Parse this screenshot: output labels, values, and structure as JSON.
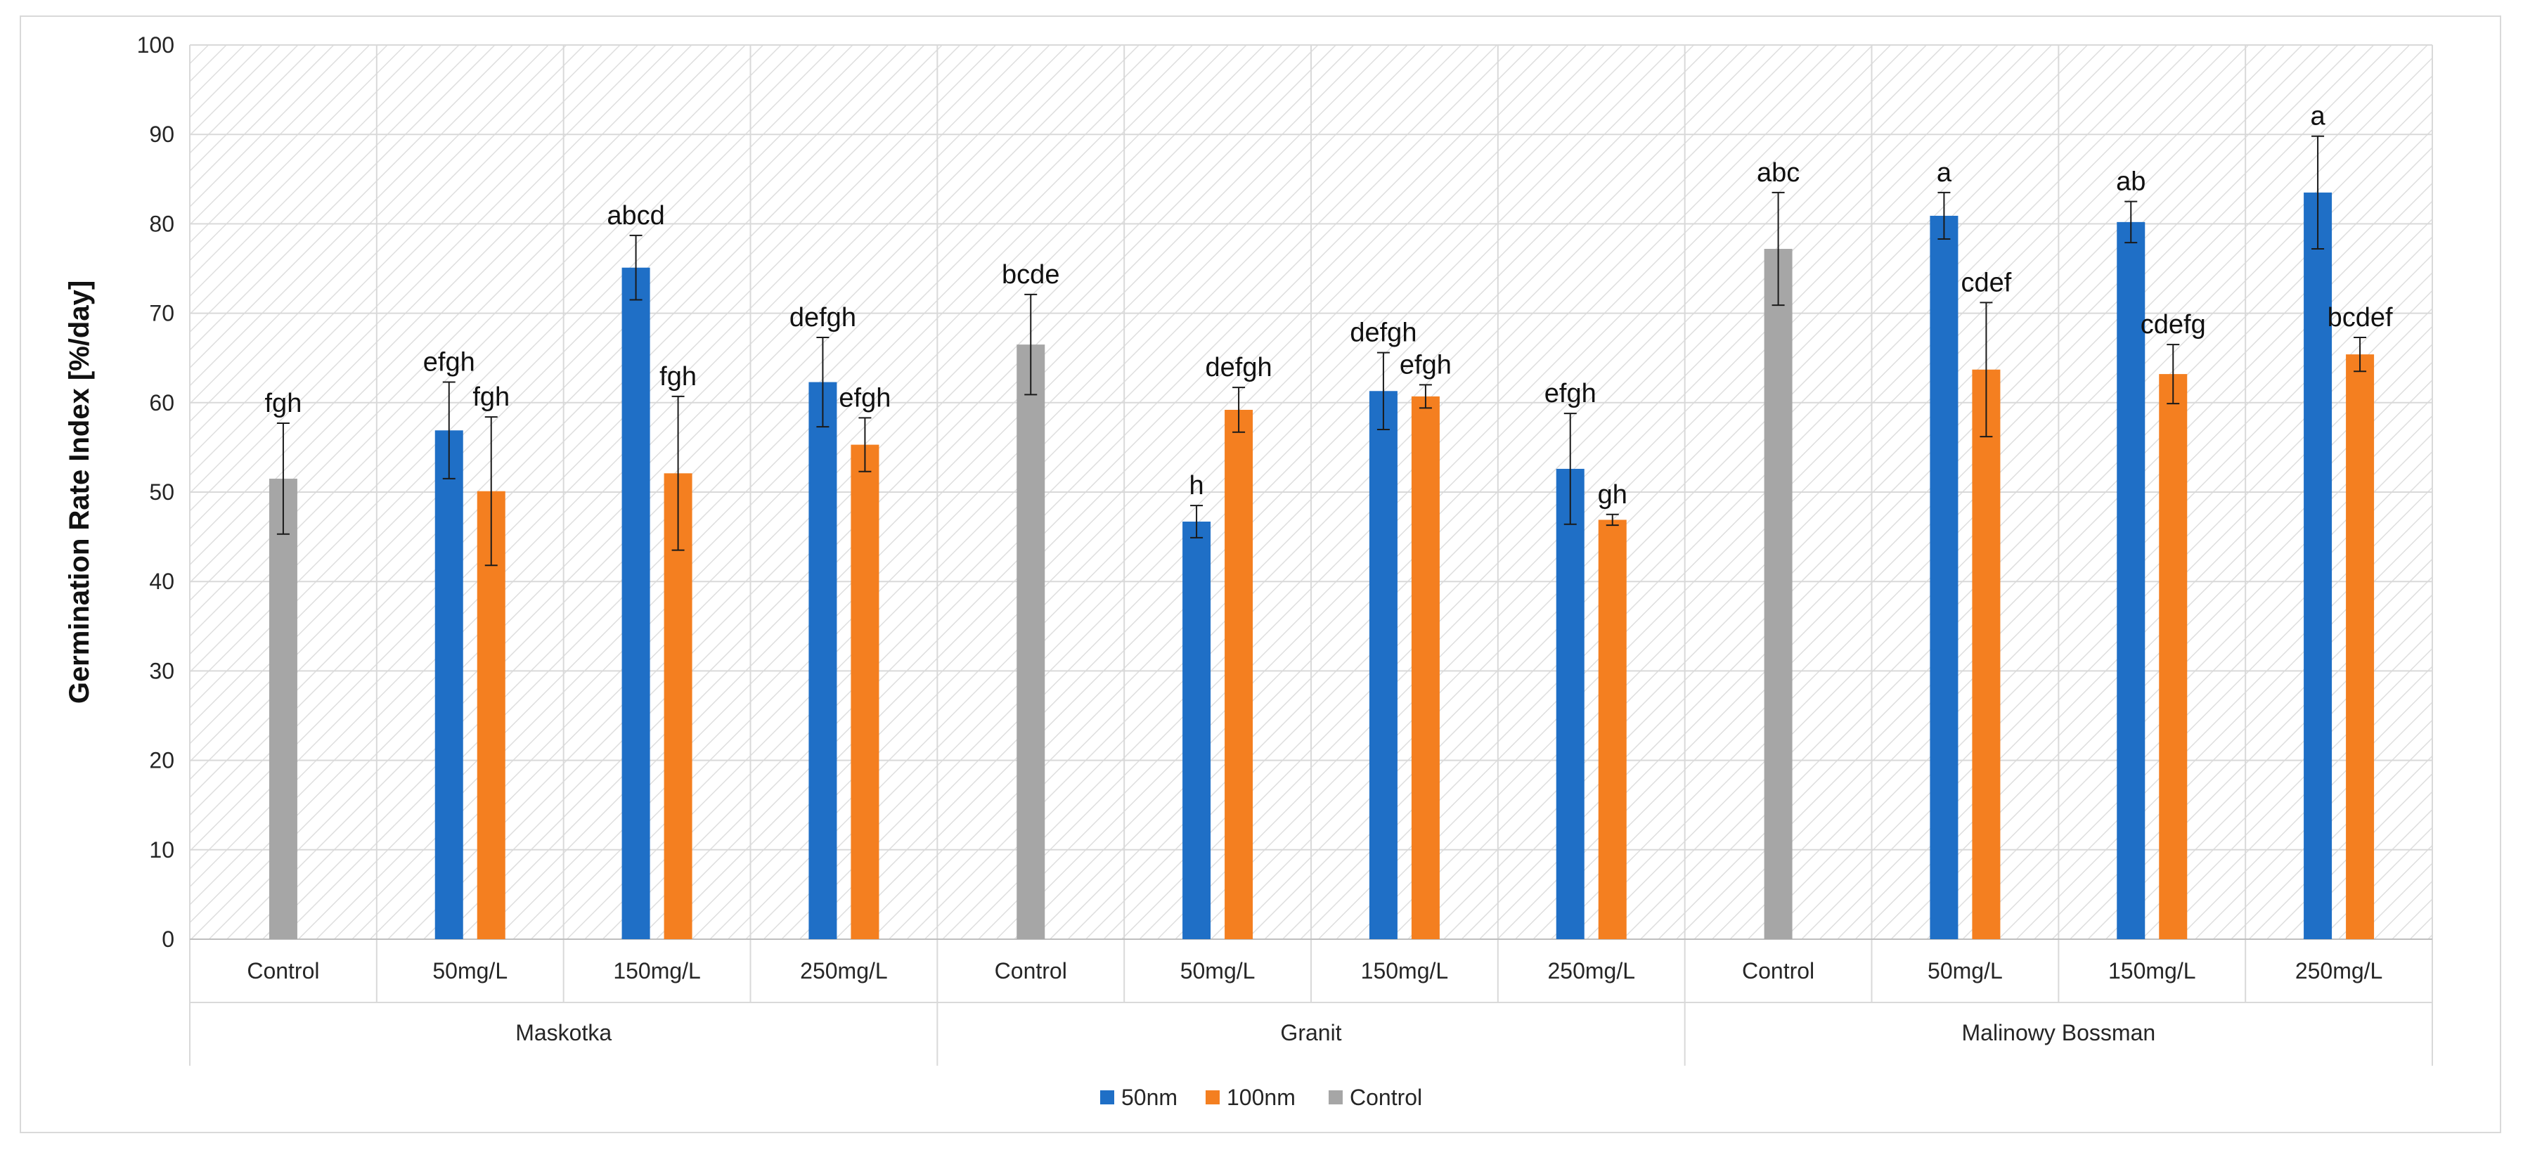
{
  "chart_data": {
    "type": "bar",
    "title": "",
    "ylabel": "Germination Rate Index [%/day]",
    "xlabel": "",
    "ylim": [
      0,
      100
    ],
    "yticks": [
      0,
      10,
      20,
      30,
      40,
      50,
      60,
      70,
      80,
      90,
      100
    ],
    "grid": true,
    "legend_position": "bottom",
    "groups": [
      "Maskotka",
      "Granit",
      "Malinowy Bossman"
    ],
    "categories": [
      "Control",
      "50mg/L",
      "150mg/L",
      "250mg/L"
    ],
    "series": [
      {
        "name": "50nm",
        "color": "#1f6fc6"
      },
      {
        "name": "100nm",
        "color": "#f47f20"
      },
      {
        "name": "Control",
        "color": "#a6a6a6"
      }
    ],
    "bars": [
      {
        "group": "Maskotka",
        "category": "Control",
        "series": "Control",
        "value": 51.5,
        "error": 6.2,
        "label": "fgh"
      },
      {
        "group": "Maskotka",
        "category": "50mg/L",
        "series": "50nm",
        "value": 56.9,
        "error": 5.4,
        "label": "efgh"
      },
      {
        "group": "Maskotka",
        "category": "50mg/L",
        "series": "100nm",
        "value": 50.1,
        "error": 8.3,
        "label": "fgh"
      },
      {
        "group": "Maskotka",
        "category": "150mg/L",
        "series": "50nm",
        "value": 75.1,
        "error": 3.6,
        "label": "abcd"
      },
      {
        "group": "Maskotka",
        "category": "150mg/L",
        "series": "100nm",
        "value": 52.1,
        "error": 8.6,
        "label": "fgh"
      },
      {
        "group": "Maskotka",
        "category": "250mg/L",
        "series": "50nm",
        "value": 62.3,
        "error": 5.0,
        "label": "defgh"
      },
      {
        "group": "Maskotka",
        "category": "250mg/L",
        "series": "100nm",
        "value": 55.3,
        "error": 3.0,
        "label": "efgh"
      },
      {
        "group": "Granit",
        "category": "Control",
        "series": "Control",
        "value": 66.5,
        "error": 5.6,
        "label": "bcde"
      },
      {
        "group": "Granit",
        "category": "50mg/L",
        "series": "50nm",
        "value": 46.7,
        "error": 1.8,
        "label": "h"
      },
      {
        "group": "Granit",
        "category": "50mg/L",
        "series": "100nm",
        "value": 59.2,
        "error": 2.5,
        "label": "defgh"
      },
      {
        "group": "Granit",
        "category": "150mg/L",
        "series": "50nm",
        "value": 61.3,
        "error": 4.3,
        "label": "defgh"
      },
      {
        "group": "Granit",
        "category": "150mg/L",
        "series": "100nm",
        "value": 60.7,
        "error": 1.3,
        "label": "efgh"
      },
      {
        "group": "Granit",
        "category": "250mg/L",
        "series": "50nm",
        "value": 52.6,
        "error": 6.2,
        "label": "efgh"
      },
      {
        "group": "Granit",
        "category": "250mg/L",
        "series": "100nm",
        "value": 46.9,
        "error": 0.6,
        "label": "gh"
      },
      {
        "group": "Malinowy Bossman",
        "category": "Control",
        "series": "Control",
        "value": 77.2,
        "error": 6.3,
        "label": "abc"
      },
      {
        "group": "Malinowy Bossman",
        "category": "50mg/L",
        "series": "50nm",
        "value": 80.9,
        "error": 2.6,
        "label": "a"
      },
      {
        "group": "Malinowy Bossman",
        "category": "50mg/L",
        "series": "100nm",
        "value": 63.7,
        "error": 7.5,
        "label": "cdef"
      },
      {
        "group": "Malinowy Bossman",
        "category": "150mg/L",
        "series": "50nm",
        "value": 80.2,
        "error": 2.3,
        "label": "ab"
      },
      {
        "group": "Malinowy Bossman",
        "category": "150mg/L",
        "series": "100nm",
        "value": 63.2,
        "error": 3.3,
        "label": "cdefg"
      },
      {
        "group": "Malinowy Bossman",
        "category": "250mg/L",
        "series": "50nm",
        "value": 83.5,
        "error": 6.3,
        "label": "a"
      },
      {
        "group": "Malinowy Bossman",
        "category": "250mg/L",
        "series": "100nm",
        "value": 65.4,
        "error": 1.9,
        "label": "bcdef"
      }
    ]
  }
}
